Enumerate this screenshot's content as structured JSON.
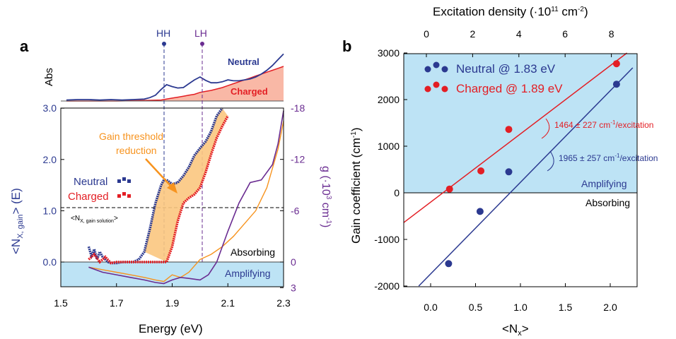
{
  "panel_a": {
    "panel_label": "a",
    "marker_hh": "HH",
    "marker_lh": "LH",
    "abs_ylabel": "Abs",
    "abs_neutral_label": "Neutral",
    "abs_charged_label": "Charged",
    "ylabel_left": "<N",
    "ylabel_left_sub": "X, gain",
    "ylabel_left_tail": "> (E)",
    "ylabel_right": "g (·10",
    "ylabel_right_sup": "3",
    "ylabel_right_tail": " cm",
    "ylabel_right_sup2": "-1",
    "ylabel_right_close": ")",
    "xlabel": "Energy (eV)",
    "annotation_line1": "Gain threshold",
    "annotation_line2": "reduction",
    "legend_neutral": "Neutral",
    "legend_charged": "Charged",
    "gain_solution_label": "<N",
    "gain_solution_sub": "X, gain solution",
    "gain_solution_close": ">",
    "absorbing_label": "Absorbing",
    "amplifying_label": "Amplifying"
  },
  "panel_b": {
    "panel_label": "b",
    "top_xlabel": "Excitation density (·10",
    "top_xlabel_sup": "11",
    "top_xlabel_mid": " cm",
    "top_xlabel_sup2": "-2",
    "top_xlabel_close": ")",
    "ylabel": "Gain coefficient (cm",
    "ylabel_sup": "-1",
    "ylabel_close": ")",
    "xlabel": "<N",
    "xlabel_sub": "x",
    "xlabel_close": ">",
    "legend_neutral": "Neutral @ 1.83 eV",
    "legend_charged": "Charged @ 1.89 eV",
    "slope_charged": "1464 ± 227 cm",
    "slope_charged_sup": "-1",
    "slope_charged_tail": "/excitation",
    "slope_neutral": "1965 ± 257 cm",
    "slope_neutral_sup": "-1",
    "slope_neutral_tail": "/excitation",
    "amplifying_label": "Amplifying",
    "absorbing_label": "Absorbing"
  },
  "colors": {
    "neutral": "#2b3990",
    "charged": "#e31e24",
    "gain_curve": "#6a2c91",
    "orange": "#f7931e",
    "fill_orange": "#fbc67f",
    "amplifying_fill": "#bde3f5",
    "charged_abs_fill": "#f9b8a6"
  },
  "chart_data": [
    {
      "id": "panel_a_abs",
      "type": "line",
      "ylabel": "Abs",
      "xlim": [
        1.5,
        2.3
      ],
      "series": [
        {
          "name": "Neutral",
          "x": [
            1.52,
            1.56,
            1.6,
            1.64,
            1.68,
            1.72,
            1.76,
            1.8,
            1.82,
            1.84,
            1.86,
            1.88,
            1.9,
            1.92,
            1.94,
            1.96,
            1.98,
            2.0,
            2.02,
            2.04,
            2.06,
            2.08,
            2.1,
            2.12,
            2.14,
            2.16,
            2.18,
            2.2,
            2.22,
            2.24,
            2.26,
            2.28,
            2.3
          ],
          "y": [
            0.02,
            0.03,
            0.03,
            0.02,
            0.03,
            0.02,
            0.03,
            0.04,
            0.07,
            0.12,
            0.24,
            0.34,
            0.3,
            0.27,
            0.28,
            0.36,
            0.44,
            0.5,
            0.43,
            0.38,
            0.38,
            0.4,
            0.44,
            0.42,
            0.42,
            0.44,
            0.46,
            0.5,
            0.56,
            0.64,
            0.74,
            0.86,
            0.98
          ]
        },
        {
          "name": "Charged",
          "x": [
            1.52,
            1.6,
            1.7,
            1.8,
            1.86,
            1.88,
            1.9,
            1.92,
            1.94,
            1.96,
            1.98,
            2.0,
            2.02,
            2.04,
            2.06,
            2.08,
            2.1,
            2.12,
            2.14,
            2.16,
            2.18,
            2.2,
            2.22,
            2.24,
            2.26,
            2.28,
            2.3
          ],
          "y": [
            0.0,
            0.0,
            0.0,
            0.01,
            0.02,
            0.04,
            0.06,
            0.08,
            0.1,
            0.12,
            0.14,
            0.18,
            0.2,
            0.22,
            0.25,
            0.28,
            0.32,
            0.36,
            0.4,
            0.44,
            0.48,
            0.52,
            0.56,
            0.6,
            0.64,
            0.68,
            0.72
          ]
        }
      ]
    },
    {
      "id": "panel_a_main",
      "type": "line",
      "xlabel": "Energy (eV)",
      "xlim": [
        1.5,
        2.3
      ],
      "ylim": [
        -0.5,
        3.0
      ],
      "yticks": [
        0.0,
        1.0,
        2.0,
        3.0
      ],
      "xticks": [
        1.5,
        1.7,
        1.9,
        2.1,
        2.3
      ],
      "y2ticks": [
        3,
        0,
        -6,
        -12,
        -18
      ],
      "y2lim": [
        3,
        -18
      ],
      "reference_lines": {
        "HH": 1.875,
        "LH": 2.005,
        "gain_solution": 1.05
      },
      "series": [
        {
          "name": "Neutral",
          "x": [
            1.6,
            1.61,
            1.62,
            1.63,
            1.64,
            1.65,
            1.66,
            1.67,
            1.68,
            1.7,
            1.72,
            1.74,
            1.76,
            1.78,
            1.8,
            1.82,
            1.84,
            1.86,
            1.87,
            1.88,
            1.9,
            1.92,
            1.94,
            1.96,
            1.98,
            2.0,
            2.02,
            2.04,
            2.06,
            2.08
          ],
          "y": [
            0.3,
            0.12,
            0.25,
            0.05,
            0.2,
            0.1,
            0.05,
            0.0,
            -0.02,
            -0.02,
            0.0,
            0.0,
            0.0,
            0.05,
            0.2,
            0.65,
            1.15,
            1.5,
            1.6,
            1.6,
            1.52,
            1.55,
            1.68,
            1.85,
            2.08,
            2.22,
            2.35,
            2.55,
            2.85,
            3.0
          ]
        },
        {
          "name": "Charged",
          "x": [
            1.6,
            1.62,
            1.64,
            1.66,
            1.68,
            1.7,
            1.72,
            1.74,
            1.76,
            1.78,
            1.8,
            1.82,
            1.84,
            1.86,
            1.88,
            1.9,
            1.92,
            1.94,
            1.96,
            1.98,
            2.0,
            2.02,
            2.04,
            2.06,
            2.08,
            2.1
          ],
          "y": [
            0.05,
            0.15,
            0.0,
            0.1,
            -0.02,
            0.0,
            0.0,
            0.0,
            0.0,
            0.0,
            0.0,
            0.0,
            0.0,
            0.0,
            0.0,
            0.3,
            0.8,
            1.15,
            1.25,
            1.32,
            1.45,
            1.75,
            2.1,
            2.42,
            2.65,
            2.85
          ]
        },
        {
          "name": "g neutral (orange)",
          "x": [
            1.6,
            1.65,
            1.7,
            1.75,
            1.8,
            1.84,
            1.87,
            1.9,
            1.93,
            1.96,
            2.0,
            2.04,
            2.08,
            2.12,
            2.16,
            2.2,
            2.24,
            2.28,
            2.3
          ],
          "y": [
            -0.1,
            -0.15,
            -0.2,
            -0.25,
            -0.3,
            -0.35,
            -0.38,
            -0.25,
            -0.3,
            -0.2,
            0.05,
            0.15,
            0.3,
            0.5,
            0.75,
            1.0,
            1.45,
            2.2,
            2.75
          ]
        },
        {
          "name": "g charged (purple)",
          "x": [
            1.6,
            1.65,
            1.7,
            1.75,
            1.8,
            1.84,
            1.87,
            1.9,
            1.93,
            1.96,
            2.0,
            2.03,
            2.06,
            2.1,
            2.14,
            2.18,
            2.22,
            2.26,
            2.28,
            2.3
          ],
          "y": [
            -0.1,
            -0.2,
            -0.25,
            -0.3,
            -0.35,
            -0.4,
            -0.42,
            -0.35,
            -0.3,
            -0.32,
            -0.35,
            -0.25,
            0.0,
            0.6,
            1.15,
            1.55,
            1.6,
            1.9,
            2.3,
            2.95
          ]
        }
      ]
    },
    {
      "id": "panel_b",
      "type": "scatter",
      "xlabel": "<Nx>",
      "ylabel": "Gain coefficient (cm-1)",
      "top_xlabel": "Excitation density (·1011 cm-2)",
      "xlim": [
        -0.3,
        2.3
      ],
      "ylim": [
        -2000,
        3000
      ],
      "xticks": [
        0.0,
        0.5,
        1.0,
        1.5,
        2.0
      ],
      "yticks": [
        -2000,
        -1000,
        0,
        1000,
        2000,
        3000
      ],
      "top_xticks": [
        0,
        2,
        4,
        6,
        8
      ],
      "series": [
        {
          "name": "Neutral @ 1.83 eV",
          "x": [
            0.2,
            0.55,
            0.87,
            2.07
          ],
          "y": [
            -1520,
            -400,
            450,
            2330
          ],
          "fit": {
            "slope": 1965,
            "intercept": -1740
          }
        },
        {
          "name": "Charged @ 1.89 eV",
          "x": [
            0.21,
            0.56,
            0.87,
            2.07
          ],
          "y": [
            80,
            470,
            1360,
            2770
          ],
          "fit": {
            "slope": 1464,
            "intercept": -200
          }
        }
      ]
    }
  ]
}
